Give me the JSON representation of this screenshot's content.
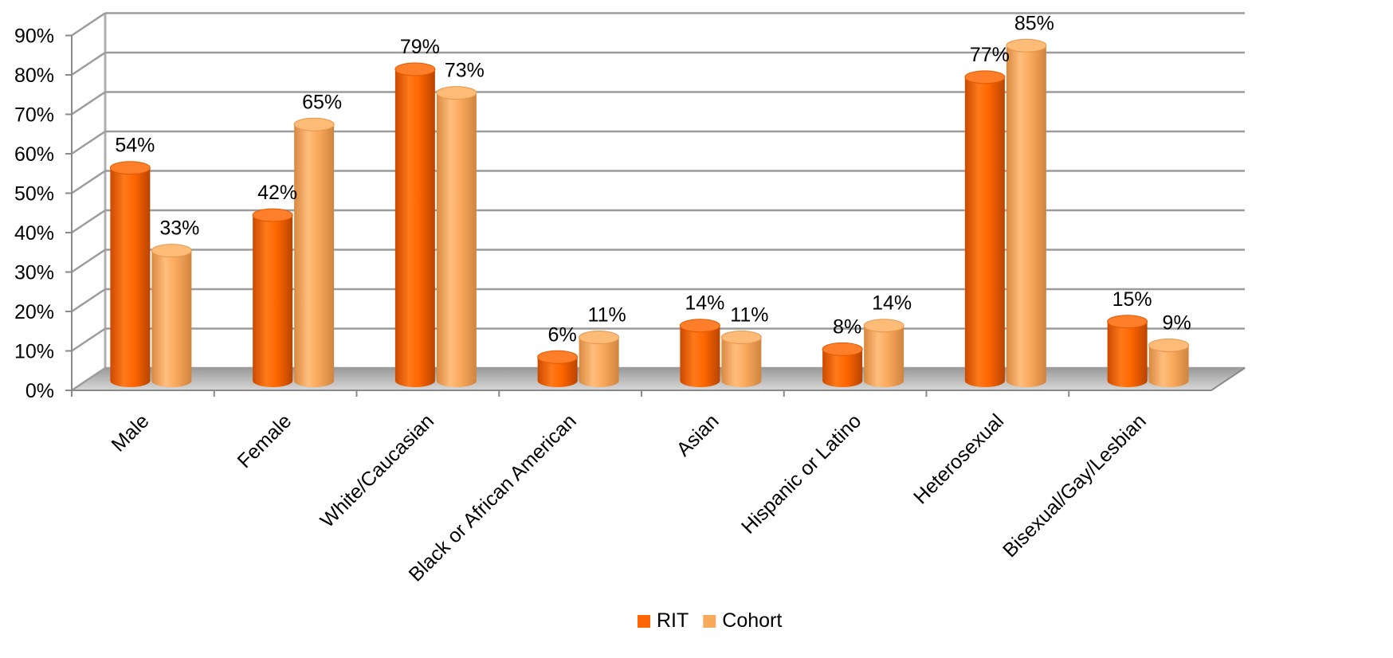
{
  "chart_data": {
    "type": "bar",
    "style": "3d-cylinder",
    "categories": [
      "Male",
      "Female",
      "White/Caucasian",
      "Black or African American",
      "Asian",
      "Hispanic or Latino",
      "Heterosexual",
      "Bisexual/Gay/Lesbian"
    ],
    "series": [
      {
        "name": "RIT",
        "color": "#FF6600",
        "values": [
          54,
          42,
          79,
          6,
          14,
          8,
          77,
          15
        ],
        "labels": [
          "54%",
          "42%",
          "79%",
          "6%",
          "14%",
          "8%",
          "77%",
          "15%"
        ]
      },
      {
        "name": "Cohort",
        "color": "#F9A95B",
        "values": [
          33,
          65,
          73,
          11,
          11,
          14,
          85,
          9
        ],
        "labels": [
          "33%",
          "65%",
          "73%",
          "11%",
          "11%",
          "14%",
          "85%",
          "9%"
        ]
      }
    ],
    "ylim": [
      0,
      90
    ],
    "yticks": [
      "0%",
      "10%",
      "20%",
      "30%",
      "40%",
      "50%",
      "60%",
      "70%",
      "80%",
      "90%"
    ],
    "grid": true,
    "legend": "bottom-center"
  }
}
